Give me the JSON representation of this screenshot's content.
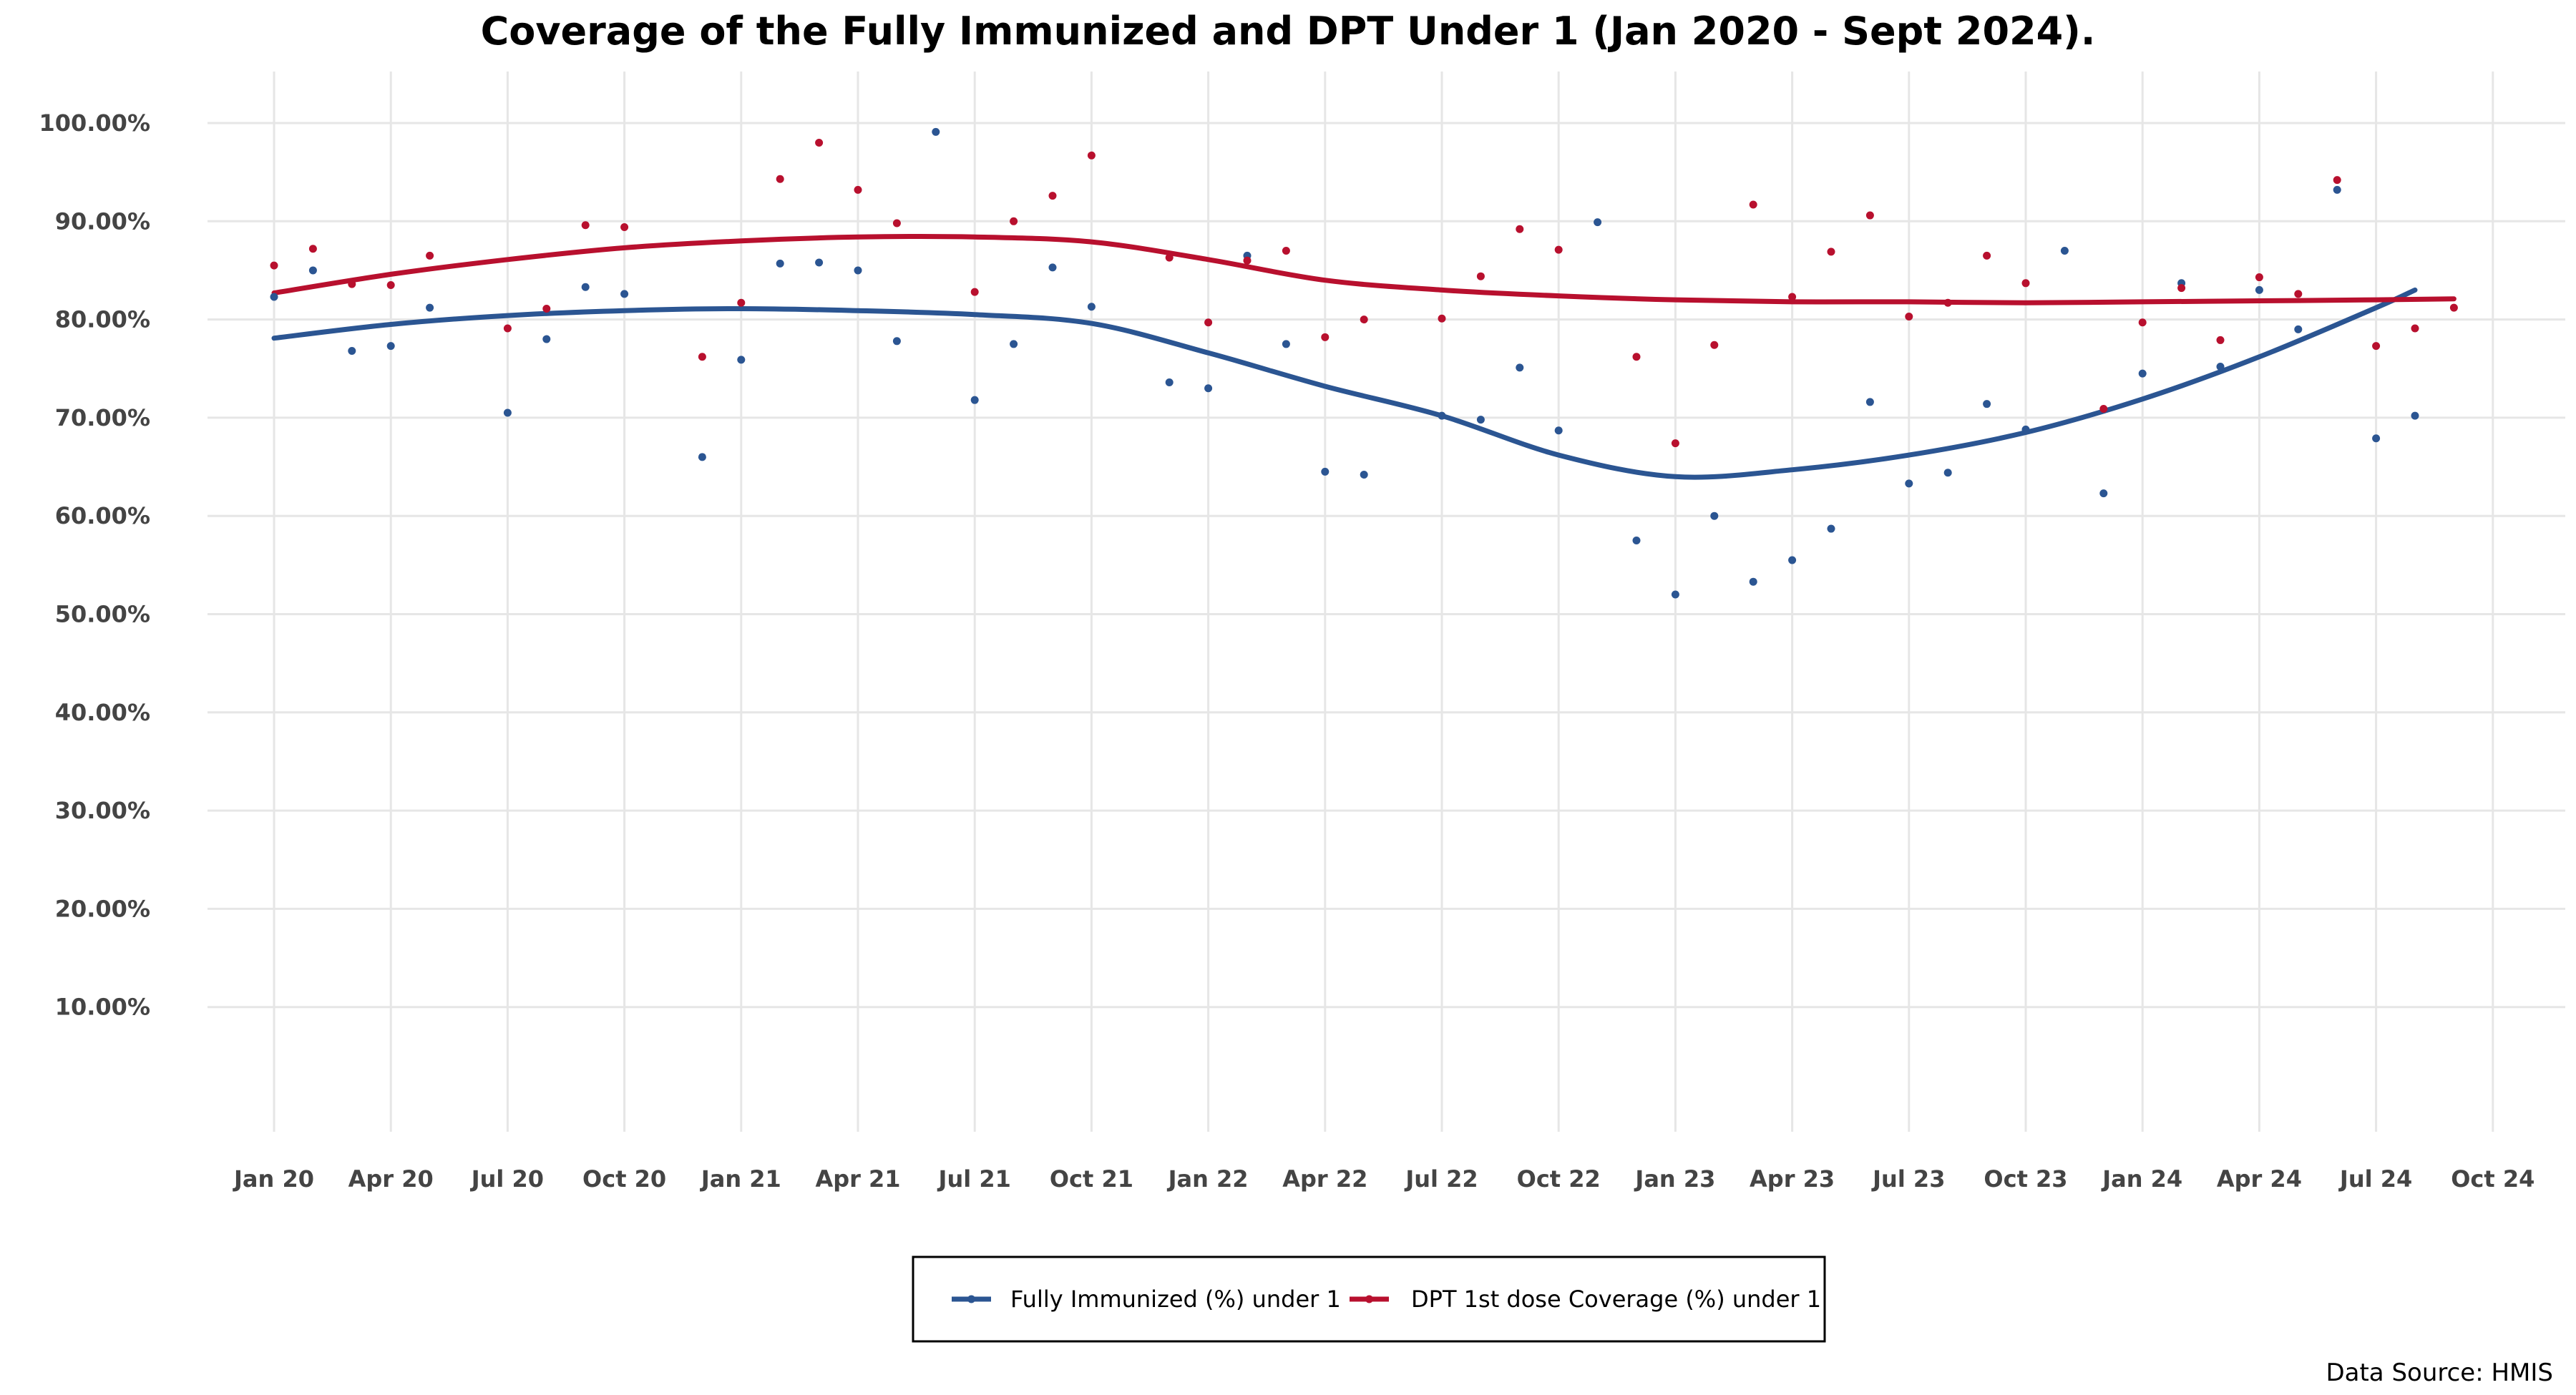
{
  "chart_data": {
    "type": "scatter",
    "title": "Coverage of the Fully Immunized and DPT Under 1 (Jan 2020 - Sept 2024).",
    "source": "Data Source: HMIS",
    "xlabel": "",
    "ylabel": "",
    "xlim": [
      "2020-01",
      "2024-10"
    ],
    "ylim": [
      0,
      100
    ],
    "grid": true,
    "legend_position": "bottom",
    "y_ticks": [
      {
        "value": 10,
        "label": "10.00%"
      },
      {
        "value": 20,
        "label": "20.00%"
      },
      {
        "value": 30,
        "label": "30.00%"
      },
      {
        "value": 40,
        "label": "40.00%"
      },
      {
        "value": 50,
        "label": "50.00%"
      },
      {
        "value": 60,
        "label": "60.00%"
      },
      {
        "value": 70,
        "label": "70.00%"
      },
      {
        "value": 80,
        "label": "80.00%"
      },
      {
        "value": 90,
        "label": "90.00%"
      },
      {
        "value": 100,
        "label": "100.00%"
      }
    ],
    "x_ticks": [
      {
        "value": "2020-01",
        "label": "Jan 20"
      },
      {
        "value": "2020-04",
        "label": "Apr 20"
      },
      {
        "value": "2020-07",
        "label": "Jul 20"
      },
      {
        "value": "2020-10",
        "label": "Oct 20"
      },
      {
        "value": "2021-01",
        "label": "Jan 21"
      },
      {
        "value": "2021-04",
        "label": "Apr 21"
      },
      {
        "value": "2021-07",
        "label": "Jul 21"
      },
      {
        "value": "2021-10",
        "label": "Oct 21"
      },
      {
        "value": "2022-01",
        "label": "Jan 22"
      },
      {
        "value": "2022-04",
        "label": "Apr 22"
      },
      {
        "value": "2022-07",
        "label": "Jul 22"
      },
      {
        "value": "2022-10",
        "label": "Oct 22"
      },
      {
        "value": "2023-01",
        "label": "Jan 23"
      },
      {
        "value": "2023-04",
        "label": "Apr 23"
      },
      {
        "value": "2023-07",
        "label": "Jul 23"
      },
      {
        "value": "2023-10",
        "label": "Oct 23"
      },
      {
        "value": "2024-01",
        "label": "Jan 24"
      },
      {
        "value": "2024-04",
        "label": "Apr 24"
      },
      {
        "value": "2024-07",
        "label": "Jul 24"
      },
      {
        "value": "2024-10",
        "label": "Oct 24"
      }
    ],
    "series": [
      {
        "name": "Fully Immunized (%) under 1",
        "color": "#2b5592",
        "points": [
          {
            "x": "2020-01",
            "y": 82.3
          },
          {
            "x": "2020-02",
            "y": 85.0
          },
          {
            "x": "2020-03",
            "y": 76.8
          },
          {
            "x": "2020-04",
            "y": 77.3
          },
          {
            "x": "2020-05",
            "y": 81.2
          },
          {
            "x": "2020-07",
            "y": 70.5
          },
          {
            "x": "2020-08",
            "y": 78.0
          },
          {
            "x": "2020-09",
            "y": 83.3
          },
          {
            "x": "2020-10",
            "y": 82.6
          },
          {
            "x": "2020-12",
            "y": 66.0
          },
          {
            "x": "2021-01",
            "y": 75.9
          },
          {
            "x": "2021-02",
            "y": 85.7
          },
          {
            "x": "2021-03",
            "y": 85.8
          },
          {
            "x": "2021-04",
            "y": 85.0
          },
          {
            "x": "2021-05",
            "y": 77.8
          },
          {
            "x": "2021-06",
            "y": 99.1
          },
          {
            "x": "2021-07",
            "y": 71.8
          },
          {
            "x": "2021-08",
            "y": 77.5
          },
          {
            "x": "2021-09",
            "y": 85.3
          },
          {
            "x": "2021-10",
            "y": 81.3
          },
          {
            "x": "2021-12",
            "y": 73.6
          },
          {
            "x": "2022-01",
            "y": 73.0
          },
          {
            "x": "2022-02",
            "y": 86.5
          },
          {
            "x": "2022-03",
            "y": 77.5
          },
          {
            "x": "2022-04",
            "y": 64.5
          },
          {
            "x": "2022-05",
            "y": 64.2
          },
          {
            "x": "2022-07",
            "y": 70.2
          },
          {
            "x": "2022-08",
            "y": 69.8
          },
          {
            "x": "2022-09",
            "y": 75.1
          },
          {
            "x": "2022-10",
            "y": 68.7
          },
          {
            "x": "2022-11",
            "y": 89.9
          },
          {
            "x": "2022-12",
            "y": 57.5
          },
          {
            "x": "2023-01",
            "y": 52.0
          },
          {
            "x": "2023-02",
            "y": 60.0
          },
          {
            "x": "2023-03",
            "y": 53.3
          },
          {
            "x": "2023-04",
            "y": 55.5
          },
          {
            "x": "2023-05",
            "y": 58.7
          },
          {
            "x": "2023-06",
            "y": 71.6
          },
          {
            "x": "2023-07",
            "y": 63.3
          },
          {
            "x": "2023-08",
            "y": 64.4
          },
          {
            "x": "2023-09",
            "y": 71.4
          },
          {
            "x": "2023-10",
            "y": 68.8
          },
          {
            "x": "2023-11",
            "y": 87.0
          },
          {
            "x": "2023-12",
            "y": 62.3
          },
          {
            "x": "2024-01",
            "y": 74.5
          },
          {
            "x": "2024-02",
            "y": 83.7
          },
          {
            "x": "2024-03",
            "y": 75.2
          },
          {
            "x": "2024-04",
            "y": 83.0
          },
          {
            "x": "2024-05",
            "y": 79.0
          },
          {
            "x": "2024-06",
            "y": 93.2
          },
          {
            "x": "2024-07",
            "y": 67.9
          },
          {
            "x": "2024-08",
            "y": 70.2
          }
        ],
        "trend": [
          {
            "x": "2020-01",
            "y": 78.1
          },
          {
            "x": "2020-04",
            "y": 79.5
          },
          {
            "x": "2020-07",
            "y": 80.4
          },
          {
            "x": "2020-10",
            "y": 80.9
          },
          {
            "x": "2021-01",
            "y": 81.1
          },
          {
            "x": "2021-04",
            "y": 80.9
          },
          {
            "x": "2021-07",
            "y": 80.5
          },
          {
            "x": "2021-10",
            "y": 79.6
          },
          {
            "x": "2022-01",
            "y": 76.6
          },
          {
            "x": "2022-04",
            "y": 73.2
          },
          {
            "x": "2022-07",
            "y": 70.2
          },
          {
            "x": "2022-10",
            "y": 66.2
          },
          {
            "x": "2023-01",
            "y": 64.0
          },
          {
            "x": "2023-04",
            "y": 64.7
          },
          {
            "x": "2023-07",
            "y": 66.2
          },
          {
            "x": "2023-10",
            "y": 68.5
          },
          {
            "x": "2024-01",
            "y": 71.9
          },
          {
            "x": "2024-04",
            "y": 76.2
          },
          {
            "x": "2024-07",
            "y": 81.2
          },
          {
            "x": "2024-08",
            "y": 83.0
          }
        ]
      },
      {
        "name": "DPT 1st dose Coverage (%) under 1",
        "color": "#b8102e",
        "points": [
          {
            "x": "2020-01",
            "y": 85.5
          },
          {
            "x": "2020-02",
            "y": 87.2
          },
          {
            "x": "2020-03",
            "y": 83.6
          },
          {
            "x": "2020-04",
            "y": 83.5
          },
          {
            "x": "2020-05",
            "y": 86.5
          },
          {
            "x": "2020-07",
            "y": 79.1
          },
          {
            "x": "2020-08",
            "y": 81.1
          },
          {
            "x": "2020-09",
            "y": 89.6
          },
          {
            "x": "2020-10",
            "y": 89.4
          },
          {
            "x": "2020-12",
            "y": 76.2
          },
          {
            "x": "2021-01",
            "y": 81.7
          },
          {
            "x": "2021-02",
            "y": 94.3
          },
          {
            "x": "2021-03",
            "y": 98.0
          },
          {
            "x": "2021-04",
            "y": 93.2
          },
          {
            "x": "2021-05",
            "y": 89.8
          },
          {
            "x": "2021-07",
            "y": 82.8
          },
          {
            "x": "2021-08",
            "y": 90.0
          },
          {
            "x": "2021-09",
            "y": 92.6
          },
          {
            "x": "2021-10",
            "y": 96.7
          },
          {
            "x": "2021-12",
            "y": 86.3
          },
          {
            "x": "2022-01",
            "y": 79.7
          },
          {
            "x": "2022-02",
            "y": 86.0
          },
          {
            "x": "2022-03",
            "y": 87.0
          },
          {
            "x": "2022-04",
            "y": 78.2
          },
          {
            "x": "2022-05",
            "y": 80.0
          },
          {
            "x": "2022-07",
            "y": 80.1
          },
          {
            "x": "2022-08",
            "y": 84.4
          },
          {
            "x": "2022-09",
            "y": 89.2
          },
          {
            "x": "2022-10",
            "y": 87.1
          },
          {
            "x": "2022-12",
            "y": 76.2
          },
          {
            "x": "2023-01",
            "y": 67.4
          },
          {
            "x": "2023-02",
            "y": 77.4
          },
          {
            "x": "2023-03",
            "y": 91.7
          },
          {
            "x": "2023-04",
            "y": 82.3
          },
          {
            "x": "2023-05",
            "y": 86.9
          },
          {
            "x": "2023-06",
            "y": 90.6
          },
          {
            "x": "2023-07",
            "y": 80.3
          },
          {
            "x": "2023-08",
            "y": 81.7
          },
          {
            "x": "2023-09",
            "y": 86.5
          },
          {
            "x": "2023-10",
            "y": 83.7
          },
          {
            "x": "2023-12",
            "y": 70.9
          },
          {
            "x": "2024-01",
            "y": 79.7
          },
          {
            "x": "2024-02",
            "y": 83.2
          },
          {
            "x": "2024-03",
            "y": 77.9
          },
          {
            "x": "2024-04",
            "y": 84.3
          },
          {
            "x": "2024-05",
            "y": 82.6
          },
          {
            "x": "2024-06",
            "y": 94.2
          },
          {
            "x": "2024-07",
            "y": 77.3
          },
          {
            "x": "2024-08",
            "y": 79.1
          },
          {
            "x": "2024-09",
            "y": 81.2
          }
        ],
        "trend": [
          {
            "x": "2020-01",
            "y": 82.7
          },
          {
            "x": "2020-04",
            "y": 84.6
          },
          {
            "x": "2020-07",
            "y": 86.1
          },
          {
            "x": "2020-10",
            "y": 87.3
          },
          {
            "x": "2021-01",
            "y": 88.0
          },
          {
            "x": "2021-04",
            "y": 88.4
          },
          {
            "x": "2021-07",
            "y": 88.4
          },
          {
            "x": "2021-10",
            "y": 87.9
          },
          {
            "x": "2022-01",
            "y": 86.1
          },
          {
            "x": "2022-04",
            "y": 84.0
          },
          {
            "x": "2022-07",
            "y": 83.0
          },
          {
            "x": "2022-10",
            "y": 82.4
          },
          {
            "x": "2023-01",
            "y": 82.0
          },
          {
            "x": "2023-04",
            "y": 81.8
          },
          {
            "x": "2023-07",
            "y": 81.8
          },
          {
            "x": "2023-10",
            "y": 81.7
          },
          {
            "x": "2024-01",
            "y": 81.8
          },
          {
            "x": "2024-04",
            "y": 81.9
          },
          {
            "x": "2024-07",
            "y": 82.0
          },
          {
            "x": "2024-09",
            "y": 82.1
          }
        ]
      }
    ]
  }
}
